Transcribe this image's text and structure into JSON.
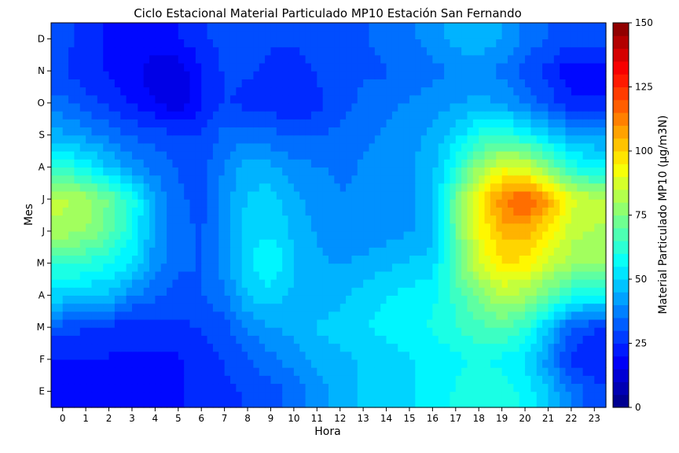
{
  "chart_data": {
    "type": "heatmap",
    "title": "Ciclo Estacional Material Particulado MP10 Estación San Fernando",
    "xlabel": "Hora",
    "ylabel": "Mes",
    "colorbar_label": "Material Particulado MP10 (µg/m3N)",
    "colorscale": "jet",
    "xlim": [
      -0.5,
      23.5
    ],
    "clim": [
      0,
      150
    ],
    "x_ticks": [
      "0",
      "1",
      "2",
      "3",
      "4",
      "5",
      "6",
      "7",
      "8",
      "9",
      "10",
      "11",
      "12",
      "13",
      "14",
      "15",
      "16",
      "17",
      "18",
      "19",
      "20",
      "21",
      "22",
      "23"
    ],
    "y_ticks": [
      "E",
      "F",
      "M",
      "A",
      "M",
      "J",
      "J",
      "A",
      "S",
      "O",
      "N",
      "D"
    ],
    "colorbar_ticks": [
      "0",
      "25",
      "50",
      "75",
      "100",
      "125",
      "150"
    ],
    "z": [
      [
        22,
        22,
        22,
        22,
        22,
        22,
        24,
        26,
        28,
        30,
        34,
        40,
        44,
        48,
        50,
        52,
        54,
        58,
        62,
        60,
        56,
        48,
        36,
        30
      ],
      [
        22,
        22,
        22,
        22,
        22,
        22,
        24,
        28,
        32,
        36,
        40,
        44,
        46,
        48,
        50,
        52,
        54,
        56,
        58,
        56,
        52,
        40,
        26,
        22
      ],
      [
        30,
        28,
        26,
        24,
        24,
        26,
        28,
        30,
        38,
        42,
        44,
        48,
        50,
        52,
        54,
        56,
        58,
        62,
        66,
        68,
        62,
        48,
        32,
        28
      ],
      [
        50,
        48,
        46,
        38,
        34,
        30,
        32,
        36,
        48,
        50,
        46,
        44,
        46,
        50,
        52,
        54,
        56,
        64,
        74,
        82,
        80,
        70,
        60,
        56
      ],
      [
        64,
        62,
        58,
        52,
        40,
        34,
        32,
        40,
        52,
        58,
        48,
        44,
        42,
        44,
        46,
        48,
        50,
        70,
        86,
        98,
        96,
        86,
        80,
        78
      ],
      [
        80,
        78,
        70,
        58,
        42,
        34,
        32,
        40,
        50,
        52,
        46,
        42,
        38,
        38,
        40,
        42,
        46,
        70,
        92,
        104,
        106,
        96,
        84,
        82
      ],
      [
        84,
        80,
        72,
        60,
        42,
        34,
        30,
        40,
        48,
        50,
        44,
        40,
        38,
        38,
        40,
        42,
        44,
        72,
        94,
        112,
        120,
        108,
        90,
        84
      ],
      [
        62,
        56,
        48,
        40,
        36,
        32,
        30,
        38,
        46,
        44,
        40,
        38,
        36,
        38,
        40,
        42,
        46,
        60,
        78,
        90,
        88,
        74,
        60,
        56
      ],
      [
        44,
        40,
        36,
        32,
        30,
        28,
        28,
        34,
        36,
        34,
        32,
        32,
        34,
        36,
        38,
        40,
        44,
        50,
        60,
        62,
        58,
        50,
        44,
        42
      ],
      [
        34,
        30,
        26,
        22,
        18,
        14,
        22,
        28,
        26,
        24,
        22,
        26,
        30,
        34,
        36,
        38,
        40,
        42,
        44,
        42,
        36,
        30,
        24,
        24
      ],
      [
        28,
        24,
        22,
        20,
        14,
        14,
        22,
        28,
        28,
        26,
        26,
        28,
        30,
        32,
        32,
        34,
        36,
        38,
        40,
        36,
        30,
        26,
        18,
        18
      ],
      [
        30,
        24,
        22,
        22,
        22,
        22,
        26,
        30,
        30,
        28,
        28,
        28,
        30,
        32,
        34,
        36,
        40,
        44,
        46,
        42,
        36,
        32,
        30,
        30
      ]
    ]
  }
}
